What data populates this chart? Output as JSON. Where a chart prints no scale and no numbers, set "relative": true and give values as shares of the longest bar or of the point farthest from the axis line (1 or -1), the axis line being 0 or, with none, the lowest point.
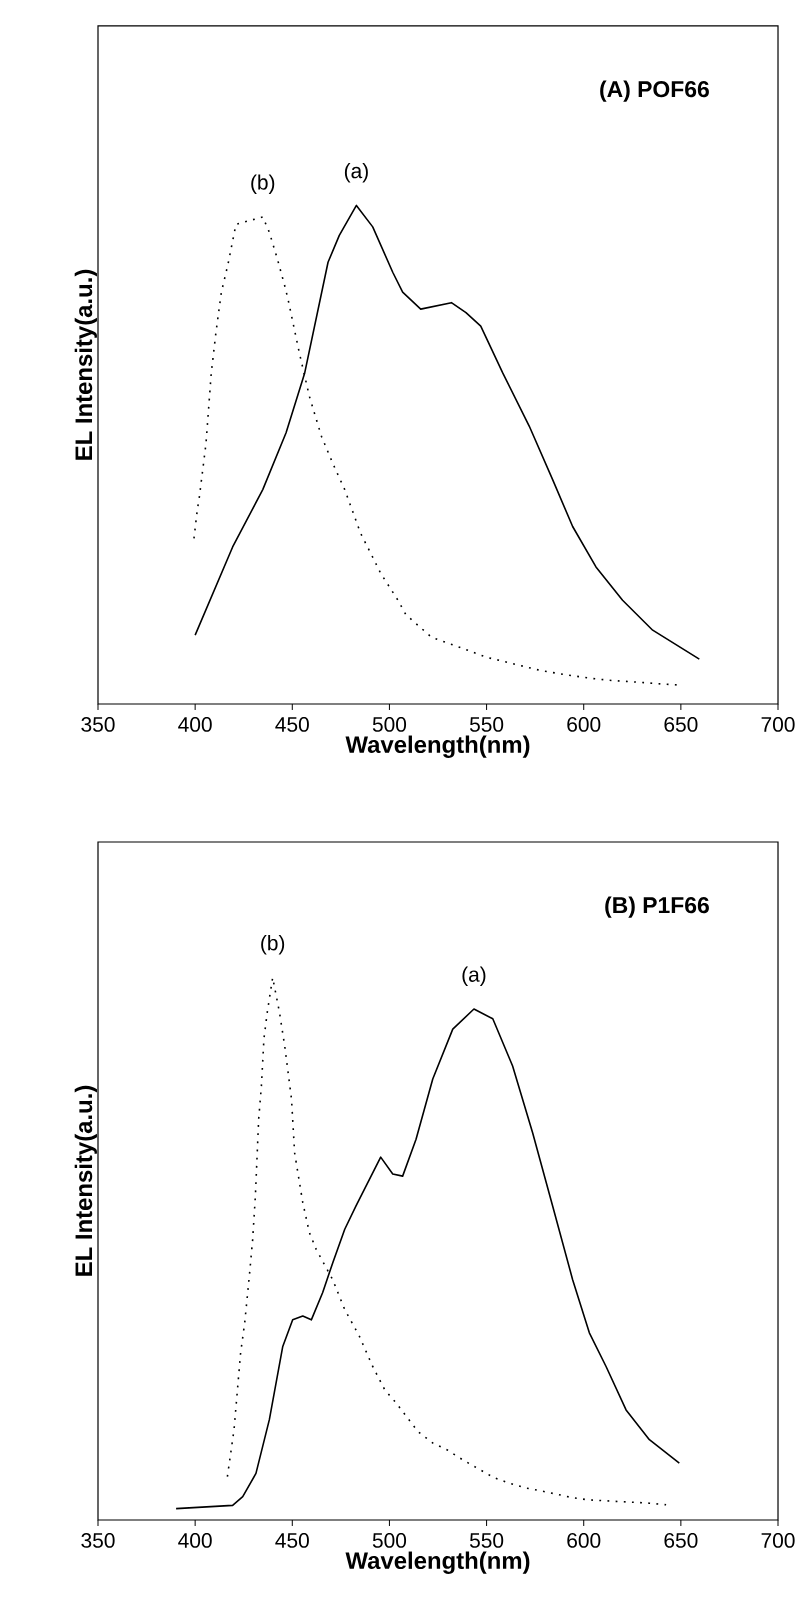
{
  "chart_data": [
    {
      "type": "line",
      "title": "(A) POF66",
      "xlabel": "Wavelength(nm)",
      "ylabel": "EL Intensity(a.u.)",
      "relative": true,
      "xlim": [
        350,
        700
      ],
      "xticks": [
        350,
        400,
        450,
        500,
        550,
        600,
        650,
        700
      ],
      "series": [
        {
          "name": "(a)",
          "color": "#000000",
          "line_style": "solid",
          "x": [
            400,
            419.3,
            434.8,
            446.8,
            456.4,
            468.4,
            474.2,
            483,
            491.4,
            501.7,
            506.8,
            516.1,
            531.9,
            539.4,
            547,
            558.3,
            572,
            584,
            594.3,
            606.3,
            620,
            635.5,
            659.5
          ],
          "values": [
            0.138,
            0.315,
            0.43,
            0.544,
            0.664,
            0.886,
            0.94,
            1.0,
            0.957,
            0.866,
            0.826,
            0.792,
            0.805,
            0.785,
            0.758,
            0.664,
            0.557,
            0.45,
            0.356,
            0.275,
            0.208,
            0.148,
            0.09
          ]
        },
        {
          "name": "(b)",
          "color": "#000000",
          "line_style": "dotted",
          "x": [
            399.4,
            401.1,
            402.2,
            405.6,
            408.3,
            410.7,
            413.5,
            416.9,
            421,
            434.8,
            438.2,
            442.3,
            446.1,
            447.8,
            453.6,
            458.8,
            465,
            470.8,
            477,
            485.2,
            492.1,
            495.5,
            504.4,
            508.5,
            521.6,
            536,
            549.7,
            563.4,
            577.9,
            591.9,
            604.6,
            614.9,
            626.9,
            640.7,
            649.2
          ],
          "values": [
            0.332,
            0.389,
            0.416,
            0.523,
            0.664,
            0.745,
            0.826,
            0.882,
            0.962,
            0.977,
            0.946,
            0.893,
            0.839,
            0.812,
            0.705,
            0.617,
            0.537,
            0.483,
            0.43,
            0.342,
            0.289,
            0.262,
            0.208,
            0.179,
            0.134,
            0.114,
            0.094,
            0.081,
            0.067,
            0.058,
            0.051,
            0.047,
            0.044,
            0.04,
            0.038
          ]
        }
      ]
    },
    {
      "type": "line",
      "title": "(B) P1F66",
      "xlabel": "Wavelength(nm)",
      "ylabel": "EL Intensity(a.u.)",
      "relative": true,
      "xlim": [
        350,
        700
      ],
      "xticks": [
        350,
        400,
        450,
        500,
        550,
        600,
        650,
        700
      ],
      "series": [
        {
          "name": "(a)",
          "color": "#000000",
          "line_style": "solid",
          "x": [
            390.2,
            419.3,
            424.5,
            431.3,
            438.2,
            445.1,
            450.2,
            455.4,
            459.8,
            465.6,
            470.8,
            477,
            482.8,
            489.7,
            495.5,
            501.7,
            506.8,
            513.7,
            522.3,
            532.6,
            543.5,
            553.2,
            563.4,
            573.7,
            584,
            594.3,
            602.9,
            611.5,
            621.8,
            633.8,
            649.2
          ],
          "values": [
            0.021,
            0.027,
            0.043,
            0.086,
            0.185,
            0.32,
            0.369,
            0.376,
            0.369,
            0.419,
            0.474,
            0.536,
            0.579,
            0.628,
            0.669,
            0.638,
            0.634,
            0.702,
            0.813,
            0.905,
            0.942,
            0.924,
            0.837,
            0.714,
            0.579,
            0.443,
            0.345,
            0.283,
            0.203,
            0.148,
            0.105
          ]
        },
        {
          "name": "(b)",
          "color": "#000000",
          "line_style": "dotted",
          "x": [
            416.6,
            420,
            423.4,
            425.5,
            427.9,
            429.6,
            431,
            432.7,
            434.1,
            435.4,
            437.2,
            439.9,
            443.4,
            446.1,
            449.6,
            451.2,
            455.4,
            458.8,
            462.3,
            470.8,
            477,
            484.5,
            491.4,
            497.6,
            503.4,
            514.7,
            522.3,
            529.8,
            537.7,
            545.5,
            553.8,
            561.7,
            570.3,
            578.9,
            586.8,
            594.3,
            602.9,
            618.4,
            633.8,
            642.4
          ],
          "values": [
            0.08,
            0.166,
            0.308,
            0.363,
            0.45,
            0.517,
            0.597,
            0.739,
            0.8,
            0.887,
            0.938,
            1.0,
            0.936,
            0.874,
            0.776,
            0.677,
            0.585,
            0.53,
            0.499,
            0.443,
            0.388,
            0.339,
            0.283,
            0.24,
            0.216,
            0.163,
            0.142,
            0.129,
            0.111,
            0.095,
            0.078,
            0.068,
            0.059,
            0.053,
            0.047,
            0.041,
            0.037,
            0.034,
            0.031,
            0.028
          ]
        }
      ]
    }
  ]
}
